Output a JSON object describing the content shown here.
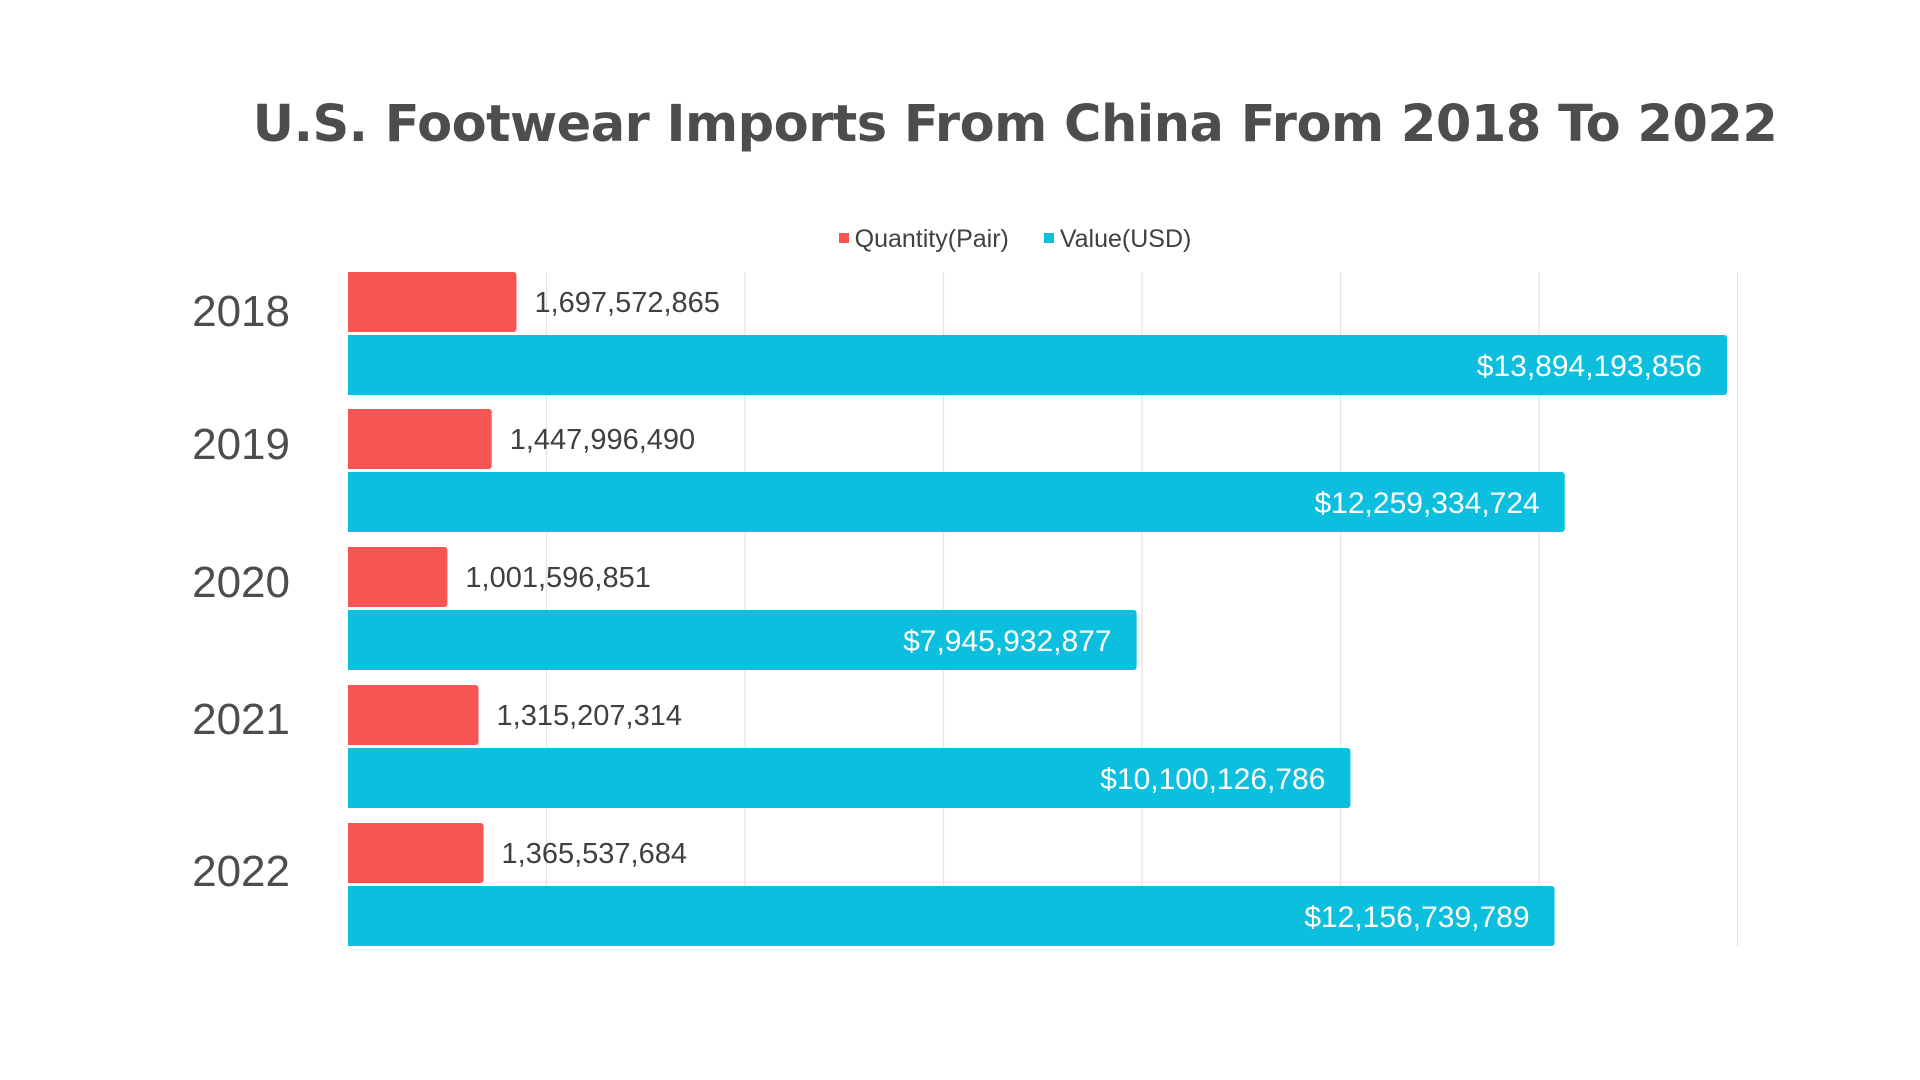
{
  "chart_data": {
    "type": "bar",
    "orientation": "horizontal",
    "title": "U.S. Footwear Imports From China From 2018 To 2022",
    "categories": [
      "2018",
      "2019",
      "2020",
      "2021",
      "2022"
    ],
    "series": [
      {
        "name": "Quantity(Pair)",
        "color": "#f75454",
        "values": [
          1697572865,
          1447996490,
          1001596851,
          1315207314,
          1365537684
        ],
        "labels": [
          "1,697,572,865",
          "1,447,996,490",
          "1,001,596,851",
          "1,315,207,314",
          "1,365,537,684"
        ]
      },
      {
        "name": "Value(USD)",
        "color": "#0cbfde",
        "values": [
          13894193856,
          12259334724,
          7945932877,
          10100126786,
          12156739789
        ],
        "labels": [
          "$13,894,193,856",
          "$12,259,334,724",
          "$7,945,932,877",
          "$10,100,126,786",
          "$12,156,739,789"
        ]
      }
    ],
    "xlim": [
      0,
      14000000000
    ],
    "grid": true,
    "legend_position": "top",
    "axis_tick_labels_shown": false
  }
}
